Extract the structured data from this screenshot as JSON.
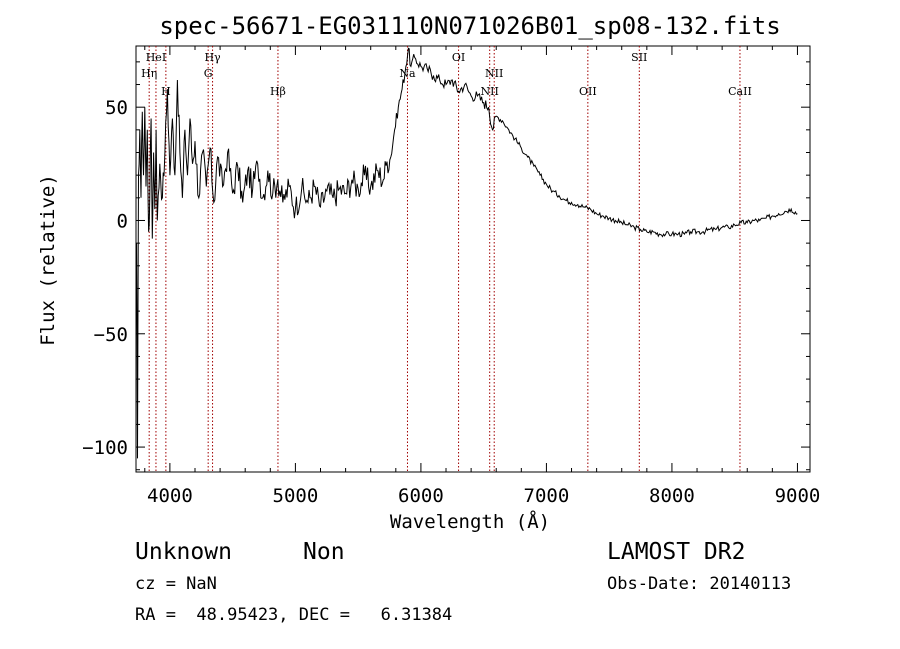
{
  "chart_data": {
    "type": "line",
    "title": "spec-56671-EG031110N071026B01_sp08-132.fits",
    "xlabel": "Wavelength (Å)",
    "ylabel": "Flux (relative)",
    "xlim": [
      3730,
      9100
    ],
    "ylim": [
      -111,
      77
    ],
    "x_ticks": [
      4000,
      5000,
      6000,
      7000,
      8000,
      9000
    ],
    "y_ticks": [
      -100,
      -50,
      0,
      50
    ],
    "x_tick_labels": [
      "4000",
      "5000",
      "6000",
      "7000",
      "8000",
      "9000"
    ],
    "y_tick_labels": [
      "−100",
      "−50",
      "0",
      "50"
    ],
    "grid": false,
    "series": [
      {
        "points": [
          [
            3735,
            -10
          ],
          [
            3742,
            -105
          ],
          [
            3750,
            20
          ],
          [
            3760,
            40
          ],
          [
            3770,
            10
          ],
          [
            3780,
            48
          ],
          [
            3790,
            20
          ],
          [
            3800,
            50
          ],
          [
            3810,
            15
          ],
          [
            3820,
            40
          ],
          [
            3830,
            -5
          ],
          [
            3840,
            10
          ],
          [
            3850,
            45
          ],
          [
            3860,
            -8
          ],
          [
            3870,
            30
          ],
          [
            3880,
            5
          ],
          [
            3890,
            40
          ],
          [
            3900,
            0
          ],
          [
            3920,
            25
          ],
          [
            3940,
            10
          ],
          [
            3960,
            30
          ],
          [
            3980,
            58
          ],
          [
            4000,
            20
          ],
          [
            4020,
            45
          ],
          [
            4040,
            20
          ],
          [
            4060,
            62
          ],
          [
            4080,
            30
          ],
          [
            4100,
            10
          ],
          [
            4120,
            40
          ],
          [
            4140,
            20
          ],
          [
            4160,
            45
          ],
          [
            4180,
            25
          ],
          [
            4200,
            35
          ],
          [
            4230,
            10
          ],
          [
            4260,
            30
          ],
          [
            4290,
            15
          ],
          [
            4320,
            32
          ],
          [
            4350,
            8
          ],
          [
            4380,
            28
          ],
          [
            4420,
            15
          ],
          [
            4460,
            30
          ],
          [
            4500,
            12
          ],
          [
            4540,
            24
          ],
          [
            4580,
            8
          ],
          [
            4620,
            22
          ],
          [
            4660,
            14
          ],
          [
            4700,
            25
          ],
          [
            4740,
            10
          ],
          [
            4780,
            22
          ],
          [
            4820,
            12
          ],
          [
            4860,
            18
          ],
          [
            4900,
            8
          ],
          [
            4950,
            15
          ],
          [
            5000,
            5
          ],
          [
            5050,
            14
          ],
          [
            5100,
            8
          ],
          [
            5150,
            15
          ],
          [
            5200,
            6
          ],
          [
            5250,
            13
          ],
          [
            5300,
            10
          ],
          [
            5350,
            14
          ],
          [
            5400,
            12
          ],
          [
            5450,
            18
          ],
          [
            5500,
            14
          ],
          [
            5550,
            20
          ],
          [
            5600,
            15
          ],
          [
            5650,
            22
          ],
          [
            5700,
            18
          ],
          [
            5730,
            26
          ],
          [
            5760,
            28
          ],
          [
            5790,
            40
          ],
          [
            5820,
            50
          ],
          [
            5850,
            58
          ],
          [
            5880,
            68
          ],
          [
            5900,
            76
          ],
          [
            5920,
            68
          ],
          [
            5950,
            72
          ],
          [
            6000,
            68
          ],
          [
            6050,
            67
          ],
          [
            6100,
            64
          ],
          [
            6150,
            62
          ],
          [
            6200,
            60
          ],
          [
            6250,
            62
          ],
          [
            6300,
            57
          ],
          [
            6350,
            60
          ],
          [
            6400,
            55
          ],
          [
            6450,
            55
          ],
          [
            6500,
            52
          ],
          [
            6540,
            50
          ],
          [
            6570,
            40
          ],
          [
            6600,
            46
          ],
          [
            6650,
            44
          ],
          [
            6700,
            40
          ],
          [
            6750,
            36
          ],
          [
            6800,
            32
          ],
          [
            6850,
            28
          ],
          [
            6900,
            24
          ],
          [
            6950,
            20
          ],
          [
            7000,
            16
          ],
          [
            7050,
            13
          ],
          [
            7100,
            11
          ],
          [
            7150,
            9
          ],
          [
            7200,
            8
          ],
          [
            7250,
            7
          ],
          [
            7300,
            6
          ],
          [
            7350,
            5
          ],
          [
            7400,
            3
          ],
          [
            7450,
            2
          ],
          [
            7500,
            1
          ],
          [
            7550,
            0
          ],
          [
            7600,
            -1
          ],
          [
            7650,
            -2
          ],
          [
            7700,
            -3
          ],
          [
            7750,
            -4
          ],
          [
            7800,
            -5
          ],
          [
            7850,
            -5
          ],
          [
            7900,
            -6
          ],
          [
            7950,
            -6
          ],
          [
            8000,
            -6
          ],
          [
            8050,
            -6
          ],
          [
            8100,
            -6
          ],
          [
            8150,
            -5
          ],
          [
            8200,
            -5
          ],
          [
            8250,
            -5
          ],
          [
            8300,
            -4
          ],
          [
            8350,
            -4
          ],
          [
            8400,
            -3
          ],
          [
            8450,
            -3
          ],
          [
            8500,
            -2
          ],
          [
            8550,
            -1
          ],
          [
            8600,
            -1
          ],
          [
            8650,
            0
          ],
          [
            8700,
            0
          ],
          [
            8750,
            1
          ],
          [
            8800,
            2
          ],
          [
            8850,
            3
          ],
          [
            8900,
            4
          ],
          [
            8950,
            5
          ],
          [
            9000,
            3
          ]
        ]
      }
    ],
    "spectral_lines": [
      {
        "label": "Hη",
        "x": 3835,
        "row": 2
      },
      {
        "label": "HeI",
        "x": 3889,
        "row": 1
      },
      {
        "label": "H",
        "x": 3968,
        "row": 3
      },
      {
        "label": "Hγ",
        "x": 4340,
        "row": 1
      },
      {
        "label": "G",
        "x": 4305,
        "row": 2
      },
      {
        "label": "Hβ",
        "x": 4861,
        "row": 3
      },
      {
        "label": "Na",
        "x": 5893,
        "row": 2
      },
      {
        "label": "OI",
        "x": 6300,
        "row": 1
      },
      {
        "label": "NII",
        "x": 6548,
        "row": 3
      },
      {
        "label": "NII",
        "x": 6584,
        "row": 2
      },
      {
        "label": "OII",
        "x": 7330,
        "row": 3
      },
      {
        "label": "SII",
        "x": 7740,
        "row": 1
      },
      {
        "label": "CaII",
        "x": 8542,
        "row": 3
      }
    ]
  },
  "footer": {
    "class_label": "Unknown",
    "subclass_label": "Non",
    "survey_label": "LAMOST DR2",
    "cz_text": "cz = NaN",
    "obs_date_text": "Obs-Date: 20140113",
    "coords_text": "RA =  48.95423, DEC =   6.31384"
  }
}
